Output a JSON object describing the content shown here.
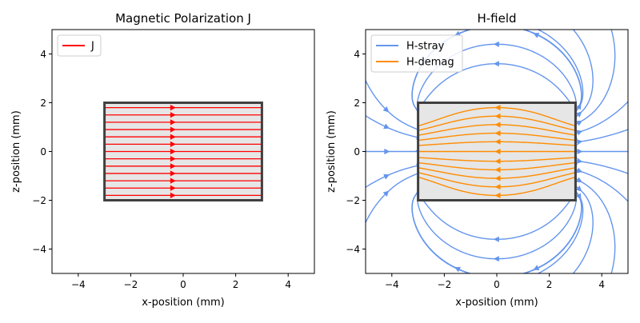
{
  "chart_data": [
    {
      "type": "streamplot",
      "title": "Magnetic Polarization J",
      "xlabel": "x-position (mm)",
      "ylabel": "z-position (mm)",
      "xlim": [
        -5,
        5
      ],
      "ylim": [
        -5,
        5
      ],
      "xticks": [
        "−4",
        "−2",
        "0",
        "2",
        "4"
      ],
      "yticks": [
        "−4",
        "−2",
        "0",
        "2",
        "4"
      ],
      "xtick_values": [
        -4,
        -2,
        0,
        2,
        4
      ],
      "ytick_values": [
        -4,
        -2,
        0,
        2,
        4
      ],
      "magnet": {
        "x": [
          -3,
          3
        ],
        "z": [
          -2,
          2
        ],
        "edge_color": "#404040",
        "fill_color": "#e6e6e6"
      },
      "legend": {
        "placement": "upper-left",
        "entries": [
          {
            "name": "J",
            "color": "#ff0000"
          }
        ]
      },
      "series": [
        {
          "name": "J",
          "color": "#ff0000",
          "direction": "+x",
          "z_levels": [
            -1.8,
            -1.5,
            -1.2,
            -0.9,
            -0.6,
            -0.3,
            0,
            0.3,
            0.6,
            0.9,
            1.2,
            1.5,
            1.8
          ],
          "x_range": [
            -3,
            3
          ],
          "arrow_x": -0.4
        }
      ]
    },
    {
      "type": "streamplot",
      "title": "H-field",
      "xlabel": "x-position (mm)",
      "ylabel": "z-position (mm)",
      "xlim": [
        -5,
        5
      ],
      "ylim": [
        -5,
        5
      ],
      "xticks": [
        "−4",
        "−2",
        "0",
        "2",
        "4"
      ],
      "yticks": [
        "−4",
        "−2",
        "0",
        "2",
        "4"
      ],
      "xtick_values": [
        -4,
        -2,
        0,
        2,
        4
      ],
      "ytick_values": [
        -4,
        -2,
        0,
        2,
        4
      ],
      "magnet": {
        "x": [
          -3,
          3
        ],
        "z": [
          -2,
          2
        ],
        "edge_color": "#404040",
        "fill_color": "#e6e6e6"
      },
      "legend": {
        "placement": "upper-left",
        "entries": [
          {
            "name": "H-stray",
            "color": "#6495ed"
          },
          {
            "name": "H-demag",
            "color": "#ff8c00"
          }
        ]
      },
      "series": [
        {
          "name": "H-stray",
          "color": "#6495ed",
          "region": "outside magnet",
          "field_model": "uniformly polarized cuboid, J along +x, stray field exits at +x face and returns to -x face"
        },
        {
          "name": "H-demag",
          "color": "#ff8c00",
          "region": "inside magnet",
          "field_model": "demagnetizing field, points from +x face to -x face"
        }
      ]
    }
  ]
}
